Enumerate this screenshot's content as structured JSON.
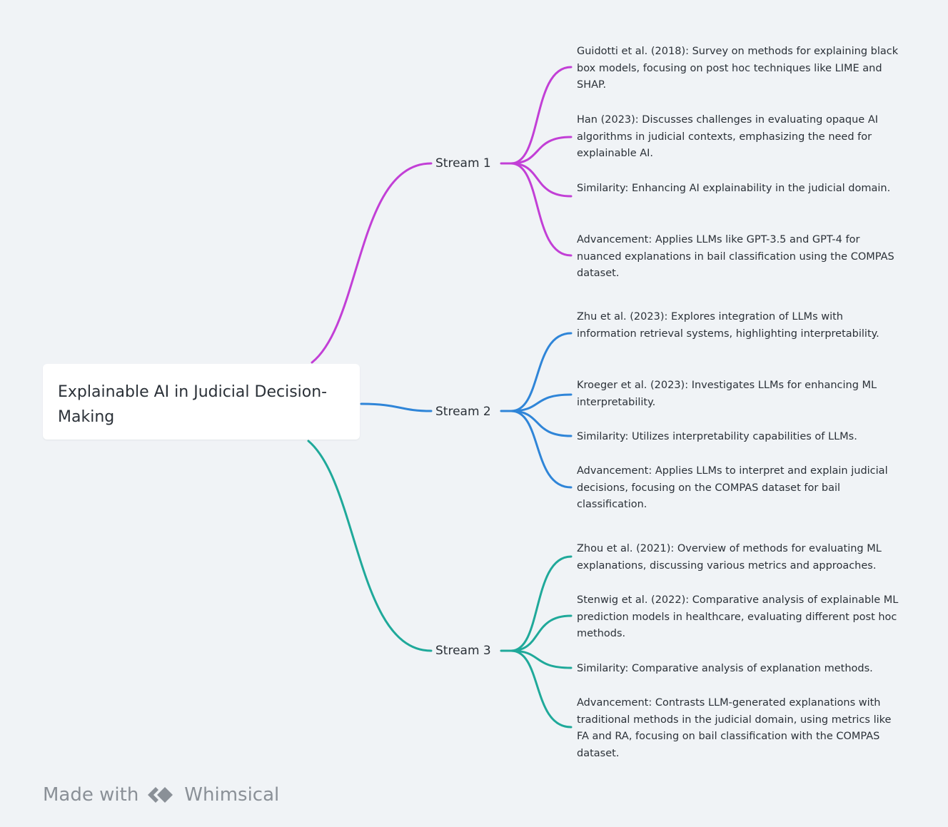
{
  "root": {
    "title": "Explainable AI in Judicial Decision-Making"
  },
  "streams": [
    {
      "label": "Stream 1",
      "color": "#c23fd6",
      "items": [
        "Guidotti et al. (2018): Survey on methods for explaining black box models, focusing on post hoc techniques like LIME and SHAP.",
        "Han (2023): Discusses challenges in evaluating opaque AI algorithms in judicial contexts, emphasizing the need for explainable AI.",
        "Similarity: Enhancing AI explainability in the judicial domain.",
        "Advancement: Applies LLMs like GPT-3.5 and GPT-4 for nuanced explanations in bail classification using the COMPAS dataset."
      ]
    },
    {
      "label": "Stream 2",
      "color": "#2f85d8",
      "items": [
        "Zhu et al. (2023): Explores integration of LLMs with information retrieval systems, highlighting interpretability.",
        "Kroeger et al. (2023): Investigates LLMs for enhancing ML interpretability.",
        "Similarity: Utilizes interpretability capabilities of LLMs.",
        "Advancement: Applies LLMs to interpret and explain judicial decisions, focusing on the COMPAS dataset for bail classification."
      ]
    },
    {
      "label": "Stream 3",
      "color": "#1fa99a",
      "items": [
        "Zhou et al. (2021): Overview of methods for evaluating ML explanations, discussing various metrics and approaches.",
        "Stenwig et al. (2022): Comparative analysis of explainable ML prediction models in healthcare, evaluating different post hoc methods.",
        "Similarity: Comparative analysis of explanation methods.",
        "Advancement: Contrasts LLM-generated explanations with traditional methods in the judicial domain, using metrics like FA and RA, focusing on bail classification with the COMPAS dataset."
      ]
    }
  ],
  "footer": {
    "made_with": "Made with",
    "brand": "Whimsical",
    "logo_icon": "whimsical-logo-icon"
  }
}
